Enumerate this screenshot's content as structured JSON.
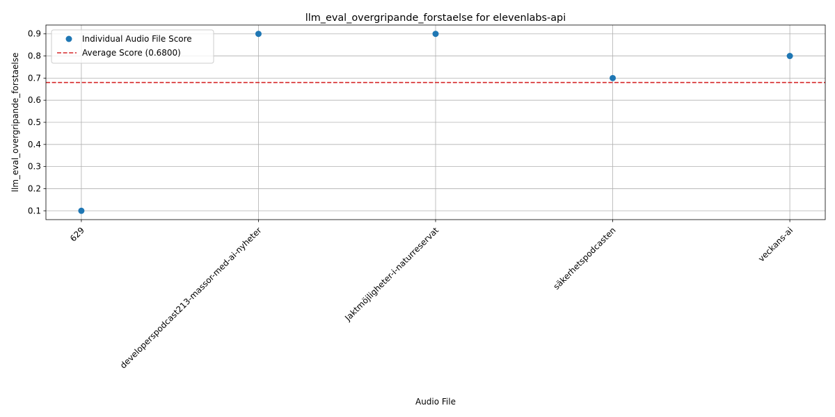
{
  "chart_data": {
    "type": "scatter",
    "title": "llm_eval_overgripande_forstaelse for elevenlabs-api",
    "xlabel": "Audio File",
    "ylabel": "llm_eval_overgripande_forstaelse",
    "categories": [
      "629",
      "developerspodcast213-massor-med-ai-nyheter",
      "Jaktmöjligheter-i-naturreservat",
      "säkerhetspodcasten",
      "veckans-ai"
    ],
    "series": [
      {
        "name": "Individual Audio File Score",
        "values": [
          0.1,
          0.9,
          0.9,
          0.7,
          0.8
        ],
        "color": "#1f77b4"
      }
    ],
    "average": {
      "label": "Average Score (0.6800)",
      "value": 0.68,
      "color": "#d62728",
      "style": "dashed"
    },
    "ylim": [
      0.06,
      0.94
    ],
    "yticks": [
      "0.1",
      "0.2",
      "0.3",
      "0.4",
      "0.5",
      "0.6",
      "0.7",
      "0.8",
      "0.9"
    ],
    "grid": true,
    "legend_position": "top-left"
  }
}
